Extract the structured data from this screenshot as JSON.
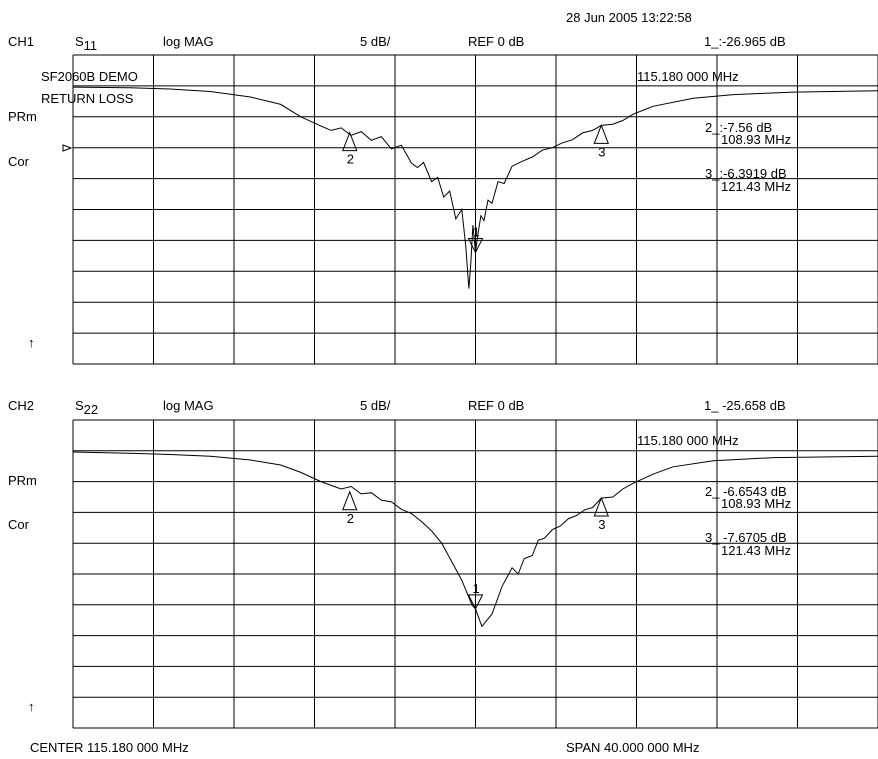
{
  "timestamp": "28 Jun 2005  13:22:58",
  "channels": [
    {
      "id": "CH1",
      "param": "S",
      "param_sub": "11",
      "format": "log MAG",
      "scale": "5 dB/",
      "ref": "REF 0 dB",
      "active_marker": "1_:-26.965 dB",
      "active_marker_freq": "115.180 000 MHz",
      "title_line1": "SF2060B DEMO",
      "title_line2": "RETURN LOSS",
      "prm": "PRm",
      "cor": "Cor",
      "marker2_value": "2_:-7.56  dB",
      "marker2_freq": "108.93 MHz",
      "marker3_value": "3_:-6.3919 dB",
      "marker3_freq": "121.43 MHz",
      "bottom_arrow": "↑",
      "marker_labels": [
        "1",
        "2",
        "3"
      ]
    },
    {
      "id": "CH2",
      "param": "S",
      "param_sub": "22",
      "format": "log MAG",
      "scale": "5 dB/",
      "ref": "REF 0 dB",
      "active_marker": "1_ -25.658 dB",
      "active_marker_freq": "115.180 000 MHz",
      "prm": "PRm",
      "cor": "Cor",
      "marker2_value": "2_ -6.6543 dB",
      "marker2_freq": "108.93 MHz",
      "marker3_value": "3_ -7.6705 dB",
      "marker3_freq": "121.43 MHz",
      "bottom_arrow": "↑",
      "marker_labels": [
        "1",
        "2",
        "3"
      ]
    }
  ],
  "footer": {
    "center": "CENTER  115.180 000 MHz",
    "span": "SPAN   40.000 000 MHz"
  },
  "chart_data": [
    {
      "type": "line",
      "xlim": [
        95.18,
        135.18
      ],
      "ylim": [
        -45,
        5
      ],
      "x_unit": "MHz",
      "y_unit": "dB",
      "ref_level": 0,
      "markers": [
        {
          "label": "1",
          "x": 115.18,
          "y": -26.965
        },
        {
          "label": "2",
          "x": 108.93,
          "y": -7.56
        },
        {
          "label": "3",
          "x": 121.43,
          "y": -6.3919
        }
      ],
      "x": [
        95.18,
        98.0,
        100.0,
        102.0,
        104.0,
        105.5,
        106.5,
        107.3,
        108.0,
        108.5,
        109.0,
        109.5,
        110.0,
        110.5,
        111.0,
        111.5,
        112.0,
        112.3,
        112.6,
        113.0,
        113.3,
        113.6,
        113.9,
        114.2,
        114.5,
        114.7,
        114.85,
        114.95,
        115.05,
        115.18,
        115.3,
        115.45,
        115.6,
        115.8,
        116.0,
        116.3,
        116.6,
        117.0,
        117.5,
        118.0,
        118.5,
        119.0,
        119.5,
        120.0,
        120.5,
        121.0,
        121.43,
        122.0,
        122.5,
        123.0,
        124.0,
        126.0,
        128.0,
        131.0,
        135.18
      ],
      "y": [
        -0.2,
        -0.3,
        -0.5,
        -0.9,
        -1.8,
        -3.0,
        -5.0,
        -6.2,
        -7.2,
        -6.8,
        -8.0,
        -7.4,
        -8.8,
        -8.2,
        -10.2,
        -9.6,
        -12.5,
        -13.2,
        -12.4,
        -15.5,
        -14.8,
        -18.0,
        -17.0,
        -21.5,
        -20.0,
        -26.0,
        -32.8,
        -28.5,
        -22.5,
        -26.965,
        -24.0,
        -21.0,
        -21.8,
        -18.5,
        -19.0,
        -15.5,
        -15.8,
        -13.0,
        -12.2,
        -11.5,
        -10.4,
        -10.0,
        -9.2,
        -8.7,
        -7.6,
        -7.2,
        -6.3919,
        -6.2,
        -5.6,
        -4.6,
        -3.3,
        -2.0,
        -1.4,
        -1.0,
        -0.8
      ]
    },
    {
      "type": "line",
      "xlim": [
        95.18,
        135.18
      ],
      "ylim": [
        -45,
        5
      ],
      "x_unit": "MHz",
      "y_unit": "dB",
      "ref_level": 0,
      "markers": [
        {
          "label": "1",
          "x": 115.18,
          "y": -25.658
        },
        {
          "label": "2",
          "x": 108.93,
          "y": -6.6543
        },
        {
          "label": "3",
          "x": 121.43,
          "y": -7.6705
        }
      ],
      "x": [
        95.18,
        98.0,
        100.0,
        102.0,
        104.0,
        105.5,
        106.5,
        107.5,
        108.5,
        109.0,
        109.5,
        110.0,
        110.5,
        111.0,
        111.5,
        112.0,
        112.5,
        113.0,
        113.5,
        114.0,
        114.5,
        115.0,
        115.18,
        115.5,
        116.0,
        116.5,
        117.0,
        117.3,
        117.6,
        118.0,
        118.3,
        118.6,
        119.0,
        119.4,
        119.8,
        120.2,
        120.6,
        121.0,
        121.43,
        122.0,
        122.5,
        123.0,
        124.0,
        125.0,
        127.0,
        130.0,
        135.18
      ],
      "y": [
        -0.2,
        -0.4,
        -0.6,
        -0.9,
        -1.5,
        -2.3,
        -3.5,
        -5.0,
        -6.2,
        -5.8,
        -7.0,
        -6.8,
        -8.0,
        -8.3,
        -9.5,
        -10.2,
        -11.5,
        -13.0,
        -15.0,
        -18.0,
        -21.0,
        -25.0,
        -25.658,
        -28.5,
        -26.5,
        -22.0,
        -19.0,
        -20.0,
        -17.5,
        -17.0,
        -14.5,
        -14.2,
        -12.8,
        -12.2,
        -11.0,
        -10.5,
        -9.6,
        -9.2,
        -7.6705,
        -7.5,
        -6.2,
        -5.3,
        -3.8,
        -2.6,
        -1.6,
        -1.1,
        -0.9
      ]
    }
  ]
}
